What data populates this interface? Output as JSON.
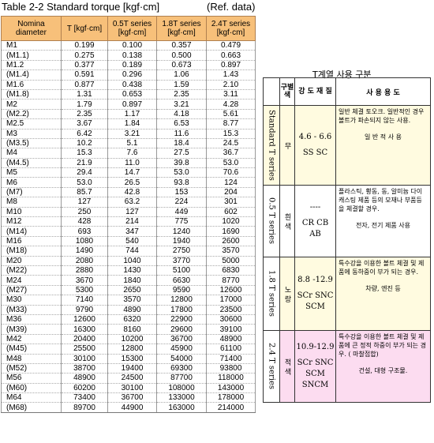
{
  "title": "Table 2-2 Standard torque [kgf·cm]",
  "ref": "(Ref. data)",
  "torque_table": {
    "headers": [
      "Nomina diameter",
      "T [kgf·cm]",
      "0.5T series [kgf·cm]",
      "1.8T series [kgf·cm]",
      "2.4T series [kgf·cm]"
    ],
    "rows": [
      [
        "M1",
        "0.199",
        "0.100",
        "0.357",
        "0.479"
      ],
      [
        "(M1.1)",
        "0.275",
        "0.138",
        "0.500",
        "0.663"
      ],
      [
        "M1.2",
        "0.377",
        "0.189",
        "0.673",
        "0.897"
      ],
      [
        "(M1.4)",
        "0.591",
        "0.296",
        "1.06",
        "1.43"
      ],
      [
        "M1.6",
        "0.877",
        "0.438",
        "1.59",
        "2.10"
      ],
      [
        "(M1.8)",
        "1.31",
        "0.653",
        "2.35",
        "3.11"
      ],
      [
        "M2",
        "1.79",
        "0.897",
        "3.21",
        "4.28"
      ],
      [
        "(M2.2)",
        "2.35",
        "1.17",
        "4.18",
        "5.61"
      ],
      [
        "M2.5",
        "3.67",
        "1.84",
        "6.53",
        "8.77"
      ],
      [
        "M3",
        "6.42",
        "3.21",
        "11.6",
        "15.3"
      ],
      [
        "(M3.5)",
        "10.2",
        "5.1",
        "18.4",
        "24.5"
      ],
      [
        "M4",
        "15.3",
        "7.6",
        "27.5",
        "36.7"
      ],
      [
        "(M4.5)",
        "21.9",
        "11.0",
        "39.8",
        "53.0"
      ],
      [
        "M5",
        "29.4",
        "14.7",
        "53.0",
        "70.6"
      ],
      [
        "M6",
        "53.0",
        "26.5",
        "93.8",
        "124"
      ],
      [
        "(M7)",
        "85.7",
        "42.8",
        "153",
        "204"
      ],
      [
        "M8",
        "127",
        "63.2",
        "224",
        "301"
      ],
      [
        "M10",
        "250",
        "127",
        "449",
        "602"
      ],
      [
        "M12",
        "428",
        "214",
        "775",
        "1020"
      ],
      [
        "(M14)",
        "693",
        "347",
        "1240",
        "1690"
      ],
      [
        "M16",
        "1080",
        "540",
        "1940",
        "2600"
      ],
      [
        "(M18)",
        "1490",
        "744",
        "2750",
        "3570"
      ],
      [
        "M20",
        "2080",
        "1040",
        "3770",
        "5000"
      ],
      [
        "(M22)",
        "2880",
        "1430",
        "5100",
        "6830"
      ],
      [
        "M24",
        "3670",
        "1840",
        "6630",
        "8770"
      ],
      [
        "(M27)",
        "5300",
        "2650",
        "9590",
        "12600"
      ],
      [
        "M30",
        "7140",
        "3570",
        "12800",
        "17000"
      ],
      [
        "(M33)",
        "9790",
        "4890",
        "17800",
        "23500"
      ],
      [
        "M36",
        "12600",
        "6320",
        "22900",
        "30600"
      ],
      [
        "(M39)",
        "16300",
        "8160",
        "29600",
        "39100"
      ],
      [
        "M42",
        "20400",
        "10200",
        "36700",
        "48900"
      ],
      [
        "(M45)",
        "25500",
        "12800",
        "45900",
        "61100"
      ],
      [
        "M48",
        "30100",
        "15300",
        "54000",
        "71400"
      ],
      [
        "(M52)",
        "38700",
        "19400",
        "69300",
        "93800"
      ],
      [
        "M56",
        "48900",
        "24500",
        "87700",
        "118000"
      ],
      [
        "(M60)",
        "60200",
        "30100",
        "108000",
        "143000"
      ],
      [
        "M64",
        "73400",
        "36700",
        "133000",
        "178000"
      ],
      [
        "(M68)",
        "89700",
        "44900",
        "163000",
        "214000"
      ]
    ]
  },
  "series_table": {
    "title": "T계열 사용 구분",
    "headers": {
      "color": "구별 색",
      "grade": "강 도 재 질",
      "use": "사 용 용 도"
    },
    "rows": [
      {
        "series": "Standard T series",
        "color": "무",
        "grade_range": "4.6 - 6.6",
        "materials": "SS SC",
        "use": "일반 체결 토오크. 일반적인 경우 볼트가 파손되지 않는 사용.",
        "note": "일 반 적 사 용"
      },
      {
        "series": "0.5 T series",
        "color": "흰 색",
        "grade_range": "----",
        "materials": "CR CB AB",
        "use": "플라스틱, 황동, 동, 알미늄 다이캐스팅 제품 등의 모재나 부품등을 체결할 경우.",
        "note": "전자, 전기 제품 사용"
      },
      {
        "series": "1.8 T series",
        "color": "노 랑",
        "grade_range": "8.8 -12.9",
        "materials": "SCr SNC SCM",
        "use": "특수강을 이용한 볼트 체결 및 제품에 동하중이 부가 되는 경우.",
        "note": "차량, 엔진 등"
      },
      {
        "series": "2.4 T series",
        "color": "적 색",
        "grade_range": "10.9-12.9",
        "materials": "SCr SNC SCM SNCM",
        "use": "특수강을 이용한 볼트 체결 및 제품에 큰 정적 하중이 부가 되는 경우. ( 마찰접합)",
        "note": "건설, 대형 구조물."
      }
    ]
  }
}
